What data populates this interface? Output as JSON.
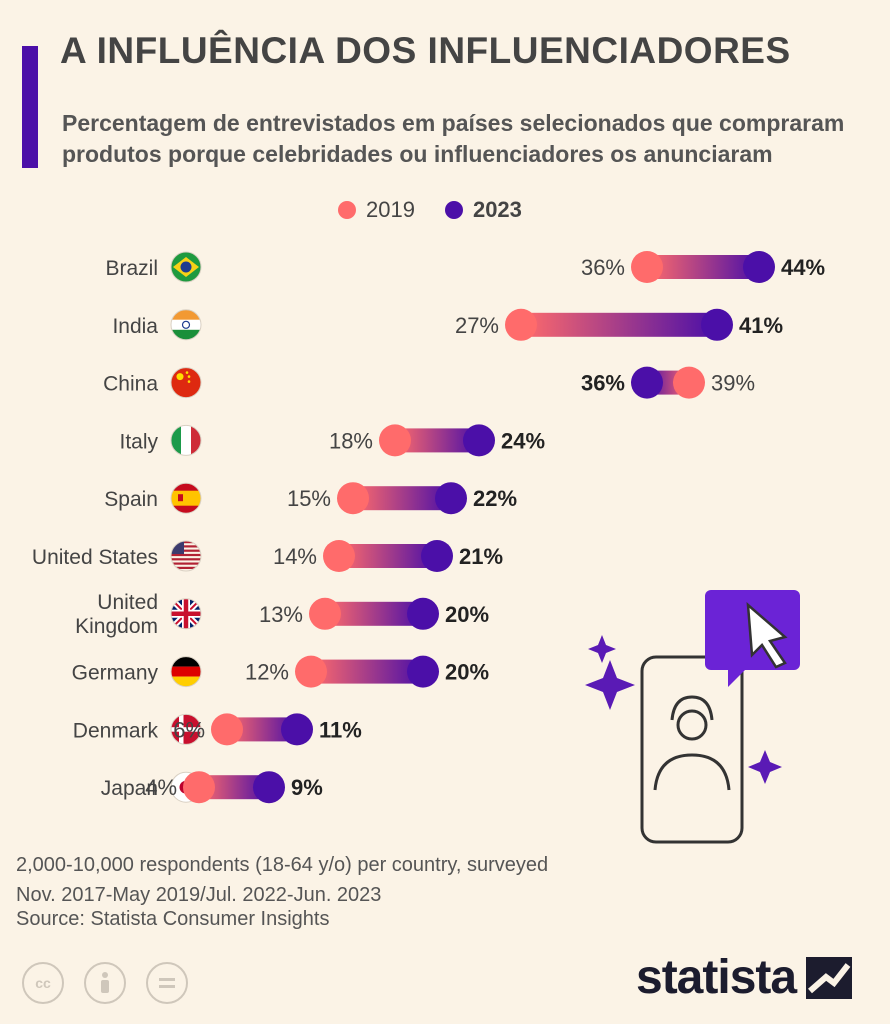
{
  "title": "A INFLUÊNCIA DOS INFLUENCIADORES",
  "subtitle": "Percentagem de entrevistados em países selecionados que compraram produtos porque celebridades ou influenciadores os anunciaram",
  "legend": {
    "a": "2019",
    "b": "2023"
  },
  "colors": {
    "y2019": "#ff6b6b",
    "y2023": "#4b0fa8",
    "accent": "#4b0fa8"
  },
  "chart_data": {
    "type": "dumbbell",
    "title": "A INFLUÊNCIA DOS INFLUENCIADORES",
    "series": [
      {
        "name": "2019",
        "values": [
          36,
          27,
          39,
          18,
          15,
          14,
          13,
          12,
          6,
          4
        ]
      },
      {
        "name": "2023",
        "values": [
          44,
          41,
          36,
          24,
          22,
          21,
          20,
          20,
          11,
          9
        ]
      }
    ],
    "categories": [
      "Brazil",
      "India",
      "China",
      "Italy",
      "Spain",
      "United States",
      "United Kingdom",
      "Germany",
      "Denmark",
      "Japan"
    ],
    "flags": [
      "flag-brazil-icon",
      "flag-india-icon",
      "flag-china-icon",
      "flag-italy-icon",
      "flag-spain-icon",
      "flag-usa-icon",
      "flag-uk-icon",
      "flag-germany-icon",
      "flag-denmark-icon",
      "flag-japan-icon"
    ],
    "unit": "%"
  },
  "note": "2,000-10,000 respondents (18-64 y/o) per country, surveyed Nov. 2017-May 2019/Jul. 2022-Jun. 2023",
  "source": "Source: Statista Consumer Insights",
  "brand": "statista"
}
